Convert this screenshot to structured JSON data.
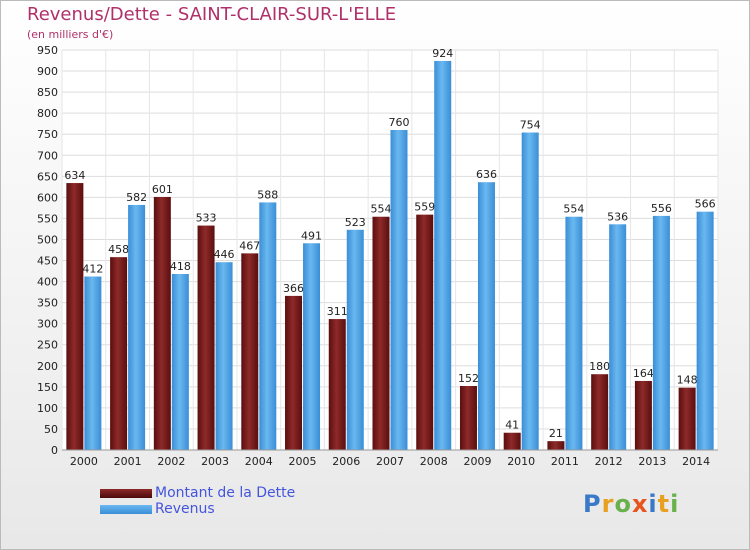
{
  "chart_data": {
    "type": "bar",
    "title": "Revenus/Dette - SAINT-CLAIR-SUR-L'ELLE",
    "subtitle": "(en milliers d'€)",
    "categories": [
      "2000",
      "2001",
      "2002",
      "2003",
      "2004",
      "2005",
      "2006",
      "2007",
      "2008",
      "2009",
      "2010",
      "2011",
      "2012",
      "2013",
      "2014"
    ],
    "series": [
      {
        "name": "Montant de la Dette",
        "color": "#7a1a1a",
        "values": [
          634,
          458,
          601,
          533,
          467,
          366,
          311,
          554,
          559,
          152,
          41,
          21,
          180,
          164,
          148
        ]
      },
      {
        "name": "Revenus",
        "color": "#4da6e8",
        "values": [
          412,
          582,
          418,
          446,
          588,
          491,
          523,
          760,
          924,
          636,
          754,
          554,
          536,
          556,
          566
        ]
      }
    ],
    "ylim": [
      0,
      950
    ],
    "yticks": [
      0,
      50,
      100,
      150,
      200,
      250,
      300,
      350,
      400,
      450,
      500,
      550,
      600,
      650,
      700,
      750,
      800,
      850,
      900,
      950
    ],
    "grid": true,
    "legend_position": "bottom-left"
  },
  "logo": {
    "letters": [
      "P",
      "r",
      "o",
      "x",
      "i",
      "t",
      "i"
    ],
    "colors": [
      "#3a78c8",
      "#e8a020",
      "#6ab04c",
      "#e8541e",
      "#3a78c8",
      "#e8a020",
      "#6ab04c"
    ]
  }
}
